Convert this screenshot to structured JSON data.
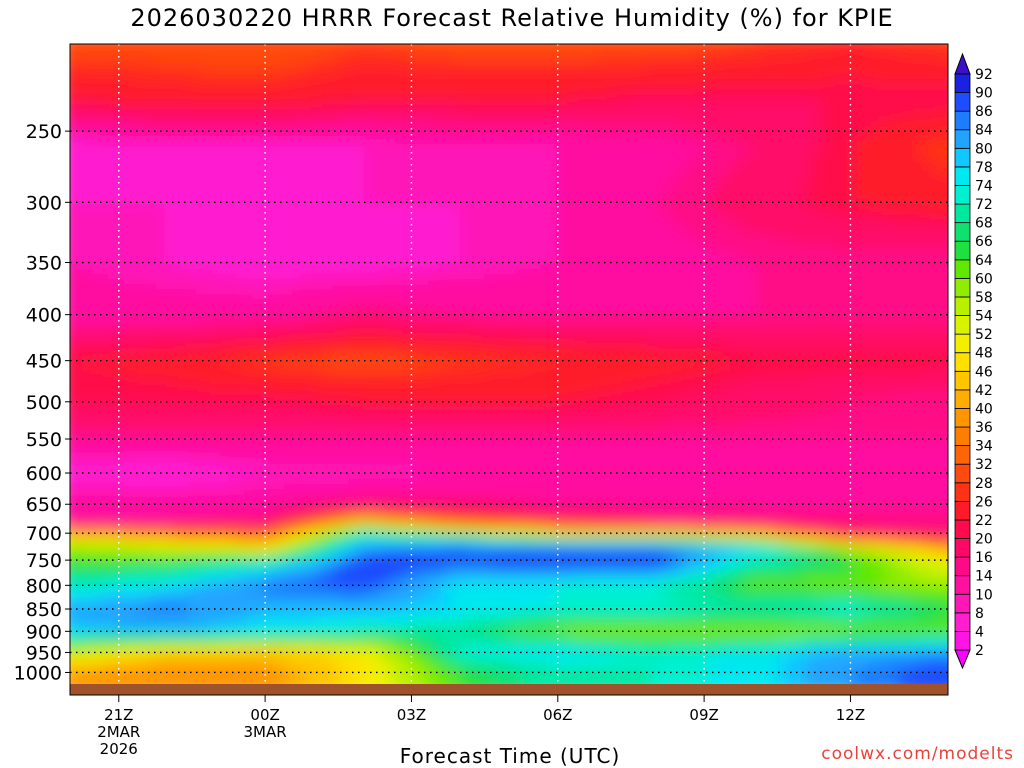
{
  "title": "2026030220 HRRR Forecast Relative Humidity (%) for KPIE",
  "credit": "coolwx.com/modelts",
  "chart_data": {
    "type": "heatmap",
    "title": "2026030220 HRRR Forecast Relative Humidity (%) for KPIE",
    "xlabel": "Forecast Time (UTC)",
    "ylabel": "",
    "x_ticks": [
      {
        "label": "21Z",
        "sub": [
          "2MAR",
          "2026"
        ],
        "hour": 21
      },
      {
        "label": "00Z",
        "sub": [
          "3MAR"
        ],
        "hour": 24
      },
      {
        "label": "03Z",
        "sub": [],
        "hour": 27
      },
      {
        "label": "06Z",
        "sub": [],
        "hour": 30
      },
      {
        "label": "09Z",
        "sub": [],
        "hour": 33
      },
      {
        "label": "12Z",
        "sub": [],
        "hour": 36
      }
    ],
    "xlim_hours": [
      20,
      38
    ],
    "y_ticks": [
      250,
      300,
      350,
      400,
      450,
      500,
      550,
      600,
      650,
      700,
      750,
      800,
      850,
      900,
      950,
      1000
    ],
    "ylim_hPa": [
      200,
      1030
    ],
    "y_scale": "log",
    "grid": true,
    "colorbar_levels": [
      2,
      4,
      8,
      10,
      14,
      16,
      20,
      22,
      26,
      28,
      32,
      34,
      36,
      40,
      42,
      46,
      48,
      52,
      54,
      58,
      60,
      64,
      66,
      68,
      72,
      74,
      78,
      80,
      84,
      86,
      90,
      92
    ],
    "colorbar_colors": [
      "#ff00ff",
      "#ff14e6",
      "#ff1fd0",
      "#ff18b8",
      "#ff10a0",
      "#ff0a86",
      "#ff0868",
      "#ff0a4c",
      "#ff1a2a",
      "#ff3218",
      "#ff4a10",
      "#ff6408",
      "#ff7e00",
      "#ff9600",
      "#ffae00",
      "#ffc600",
      "#ffe000",
      "#f2f000",
      "#d8f200",
      "#b8f000",
      "#90ec00",
      "#60e800",
      "#20e040",
      "#10e070",
      "#00e8a0",
      "#00f0d0",
      "#00e8f0",
      "#10c8ff",
      "#20a4ff",
      "#1f7cff",
      "#1e4cff",
      "#1822e0",
      "#3a10c8"
    ],
    "rh_field": {
      "columns_hours": [
        20,
        22,
        24,
        26,
        28,
        30,
        32,
        34,
        36,
        38
      ],
      "levels_hPa": [
        200,
        230,
        260,
        300,
        350,
        400,
        450,
        500,
        550,
        600,
        650,
        680,
        700,
        730,
        760,
        800,
        850,
        900,
        950,
        1000
      ],
      "rh": [
        [
          30,
          30,
          32,
          28,
          30,
          30,
          30,
          28,
          26,
          28
        ],
        [
          22,
          24,
          24,
          22,
          22,
          22,
          20,
          20,
          20,
          20
        ],
        [
          6,
          8,
          8,
          8,
          10,
          10,
          12,
          16,
          22,
          28
        ],
        [
          8,
          8,
          6,
          8,
          8,
          10,
          14,
          18,
          22,
          24
        ],
        [
          10,
          8,
          6,
          6,
          8,
          10,
          12,
          14,
          14,
          14
        ],
        [
          12,
          12,
          12,
          16,
          14,
          14,
          14,
          14,
          14,
          14
        ],
        [
          22,
          24,
          28,
          30,
          28,
          26,
          24,
          22,
          22,
          22
        ],
        [
          20,
          20,
          20,
          22,
          22,
          22,
          20,
          18,
          16,
          14
        ],
        [
          14,
          14,
          14,
          14,
          14,
          14,
          14,
          14,
          14,
          14
        ],
        [
          6,
          4,
          8,
          8,
          10,
          10,
          10,
          12,
          12,
          12
        ],
        [
          12,
          12,
          12,
          16,
          16,
          14,
          14,
          14,
          14,
          14
        ],
        [
          14,
          14,
          16,
          44,
          30,
          22,
          16,
          14,
          14,
          14
        ],
        [
          40,
          36,
          30,
          72,
          60,
          50,
          48,
          44,
          20,
          16
        ],
        [
          60,
          56,
          50,
          84,
          90,
          88,
          88,
          80,
          60,
          42
        ],
        [
          64,
          66,
          74,
          90,
          86,
          88,
          88,
          70,
          66,
          52
        ],
        [
          72,
          76,
          86,
          88,
          76,
          74,
          72,
          62,
          60,
          58
        ],
        [
          82,
          86,
          80,
          80,
          78,
          74,
          74,
          72,
          74,
          66
        ],
        [
          78,
          80,
          76,
          72,
          68,
          60,
          58,
          58,
          60,
          62
        ],
        [
          54,
          46,
          44,
          48,
          74,
          78,
          72,
          76,
          82,
          84
        ],
        [
          40,
          36,
          38,
          48,
          64,
          70,
          72,
          76,
          84,
          88
        ]
      ]
    }
  }
}
